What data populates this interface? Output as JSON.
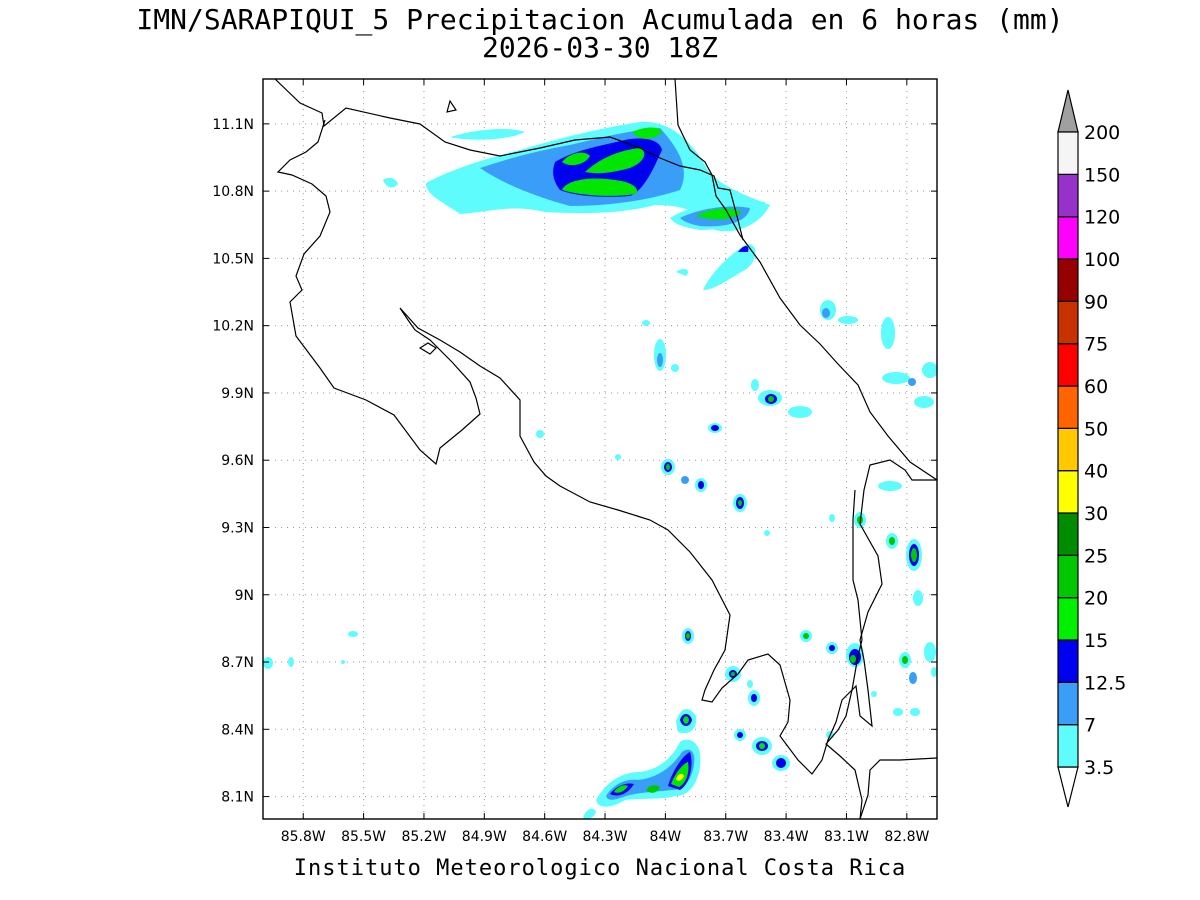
{
  "title_line1": "IMN/SARAPIQUI_5 Precipitacion Acumulada en 6 horas (mm)",
  "title_line2": "2026-03-30 18Z",
  "footer": "Instituto Meteorologico Nacional Costa Rica",
  "map": {
    "lon_range": [
      -86.0,
      -82.65
    ],
    "lat_range": [
      8.0,
      11.3
    ],
    "lon_ticks": [
      {
        "value": -85.8,
        "label": "85.8W"
      },
      {
        "value": -85.5,
        "label": "85.5W"
      },
      {
        "value": -85.2,
        "label": "85.2W"
      },
      {
        "value": -84.9,
        "label": "84.9W"
      },
      {
        "value": -84.6,
        "label": "84.6W"
      },
      {
        "value": -84.3,
        "label": "84.3W"
      },
      {
        "value": -84.0,
        "label": "84W"
      },
      {
        "value": -83.7,
        "label": "83.7W"
      },
      {
        "value": -83.4,
        "label": "83.4W"
      },
      {
        "value": -83.1,
        "label": "83.1W"
      },
      {
        "value": -82.8,
        "label": "82.8W"
      }
    ],
    "lat_ticks": [
      {
        "value": 11.1,
        "label": "11.1N"
      },
      {
        "value": 10.8,
        "label": "10.8N"
      },
      {
        "value": 10.5,
        "label": "10.5N"
      },
      {
        "value": 10.2,
        "label": "10.2N"
      },
      {
        "value": 9.9,
        "label": "9.9N"
      },
      {
        "value": 9.6,
        "label": "9.6N"
      },
      {
        "value": 9.3,
        "label": "9.3N"
      },
      {
        "value": 9.0,
        "label": "9N"
      },
      {
        "value": 8.7,
        "label": "8.7N"
      },
      {
        "value": 8.4,
        "label": "8.4N"
      },
      {
        "value": 8.1,
        "label": "8.1N"
      }
    ],
    "grid": "dotted"
  },
  "colorbar": {
    "levels": [
      "3.5",
      "7",
      "12.5",
      "15",
      "20",
      "25",
      "30",
      "40",
      "50",
      "60",
      "75",
      "90",
      "100",
      "120",
      "150",
      "200"
    ],
    "colors": [
      "#5efcfc",
      "#3a9ef8",
      "#0000f0",
      "#00f000",
      "#00c800",
      "#008c00",
      "#ffff00",
      "#ffc800",
      "#ff6400",
      "#ff0000",
      "#c83200",
      "#960000",
      "#ff00ff",
      "#9632c8",
      "#f5f5f5"
    ],
    "upper_arrow_color": "#a0a0a0",
    "lower_arrow_color": "#ffffff"
  },
  "precip_areas": [
    {
      "lon": -84.35,
      "lat": 10.87,
      "value": 3.5
    },
    {
      "lon": -84.8,
      "lat": 10.83,
      "value": 3.5
    },
    {
      "lon": -84.35,
      "lat": 10.9,
      "value": 7
    },
    {
      "lon": -84.22,
      "lat": 10.88,
      "value": 12.5
    },
    {
      "lon": -84.22,
      "lat": 10.88,
      "value": 15
    },
    {
      "lon": -84.32,
      "lat": 10.94,
      "value": 20
    },
    {
      "lon": -84.1,
      "lat": 10.92,
      "value": 20
    },
    {
      "lon": -83.96,
      "lat": 11.06,
      "value": 20
    },
    {
      "lon": -83.62,
      "lat": 10.69,
      "value": 3.5
    },
    {
      "lon": -83.62,
      "lat": 10.69,
      "value": 15
    },
    {
      "lon": -83.55,
      "lat": 10.52,
      "value": 3.5
    },
    {
      "lon": -83.55,
      "lat": 10.53,
      "value": 12.5
    },
    {
      "lon": -83.88,
      "lat": 10.05,
      "value": 3.5
    },
    {
      "lon": -83.38,
      "lat": 9.87,
      "value": 12.5
    },
    {
      "lon": -83.6,
      "lat": 9.72,
      "value": 12.5
    },
    {
      "lon": -83.89,
      "lat": 9.57,
      "value": 15
    },
    {
      "lon": -83.55,
      "lat": 9.41,
      "value": 12.5
    },
    {
      "lon": -82.75,
      "lat": 9.2,
      "value": 15
    },
    {
      "lon": -82.9,
      "lat": 9.33,
      "value": 15
    },
    {
      "lon": -82.87,
      "lat": 8.72,
      "value": 15
    },
    {
      "lon": -83.82,
      "lat": 8.8,
      "value": 15
    },
    {
      "lon": -83.8,
      "lat": 8.25,
      "value": 20
    },
    {
      "lon": -83.85,
      "lat": 8.2,
      "value": 20
    },
    {
      "lon": -84.13,
      "lat": 8.17,
      "value": 15
    },
    {
      "lon": -83.43,
      "lat": 8.32,
      "value": 15
    },
    {
      "lon": -83.33,
      "lat": 8.25,
      "value": 12.5
    },
    {
      "lon": -83.45,
      "lat": 8.54,
      "value": 12.5
    },
    {
      "lon": -83.54,
      "lat": 8.64,
      "value": 15
    },
    {
      "lon": -82.95,
      "lat": 9.49,
      "value": 3.5
    },
    {
      "lon": -83.1,
      "lat": 10.25,
      "value": 3.5
    },
    {
      "lon": -82.82,
      "lat": 9.96,
      "value": 3.5
    },
    {
      "lon": -82.75,
      "lat": 10.12,
      "value": 3.5
    },
    {
      "lon": -85.95,
      "lat": 8.69,
      "value": 7
    },
    {
      "lon": -85.32,
      "lat": 10.82,
      "value": 7
    }
  ]
}
